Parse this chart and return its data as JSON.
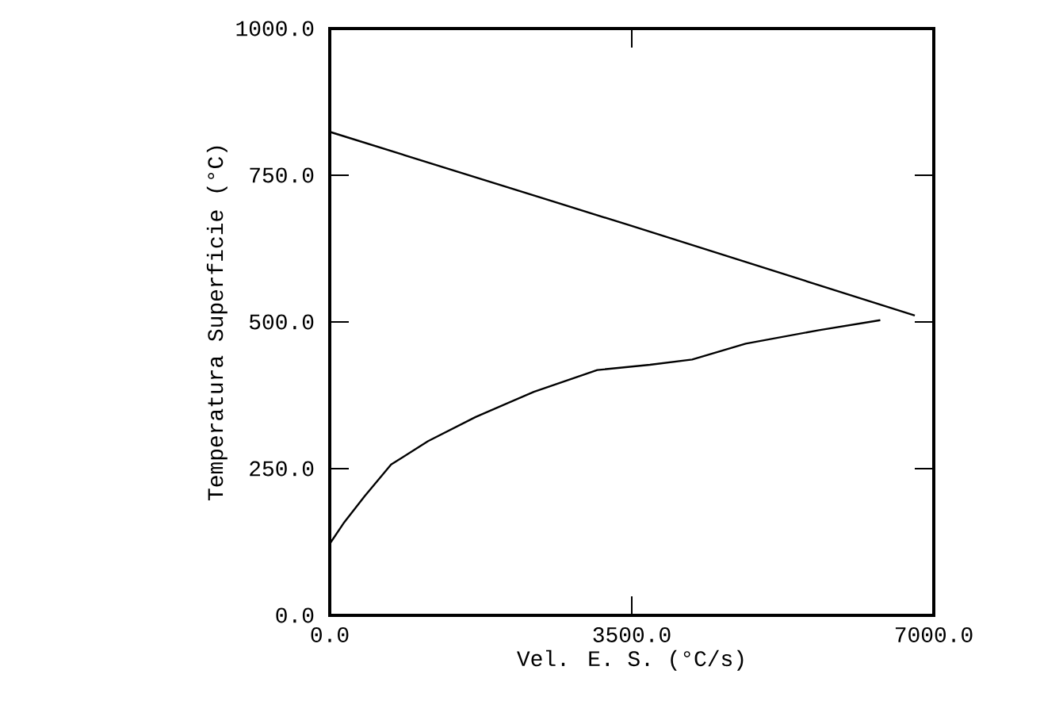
{
  "chart_data": {
    "type": "line",
    "xlabel": "Vel. E. S. (°C/s)",
    "ylabel": "Temperatura Superficie (°C)",
    "xlim": [
      0,
      7000
    ],
    "ylim": [
      0,
      1000
    ],
    "xticks": [
      {
        "value": 0,
        "label": "0.0"
      },
      {
        "value": 3500,
        "label": "3500.0"
      },
      {
        "value": 7000,
        "label": "7000.0"
      }
    ],
    "yticks": [
      {
        "value": 0,
        "label": "0.0"
      },
      {
        "value": 250,
        "label": "250.0"
      },
      {
        "value": 500,
        "label": "500.0"
      },
      {
        "value": 750,
        "label": "750.0"
      },
      {
        "value": 1000,
        "label": "1000.0"
      }
    ],
    "series": [
      {
        "color": "#000000",
        "x": [
          0,
          3470,
          6780
        ],
        "values": [
          824,
          665,
          511
        ]
      },
      {
        "color": "#000000",
        "x": [
          0,
          160,
          404,
          711,
          1140,
          1690,
          2365,
          3100,
          3710,
          4200,
          4820,
          5670,
          6380
        ],
        "values": [
          122,
          157,
          203,
          257,
          297,
          338,
          381,
          418,
          427,
          436,
          463,
          486,
          503
        ]
      }
    ]
  }
}
